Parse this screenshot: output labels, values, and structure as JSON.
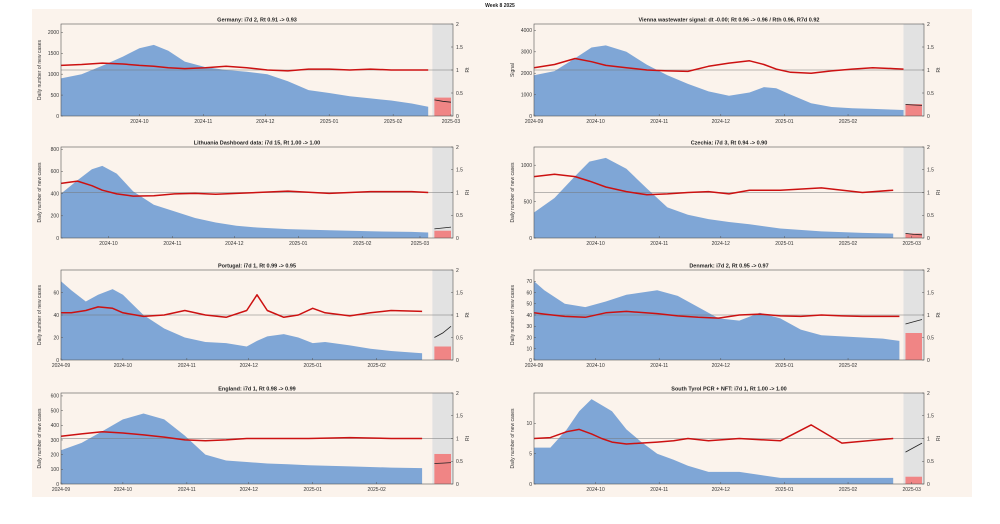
{
  "figure": {
    "suptitle": "Week 8 2025"
  },
  "colors": {
    "area": "#7fa6d6",
    "rt_line": "#cc1111",
    "fc_area": "#f08585",
    "fc_band": "#e2e2e2",
    "bg": "#fbf3ec",
    "ref": "#777777"
  },
  "chart_data": [
    {
      "type": "area",
      "title": "Germany: i7d 2, Rt 0.91 -> 0.93",
      "ylabel": "Daily number of new cases",
      "y2label": "Rt",
      "ylim": [
        0,
        2200
      ],
      "yticks": [
        0,
        500,
        1000,
        1500,
        2000
      ],
      "rlim": [
        0,
        2
      ],
      "rticks": [
        "0",
        "0.5",
        "1",
        "1.5",
        "2"
      ],
      "x": [
        0,
        10,
        20,
        30,
        38,
        45,
        52,
        60,
        70,
        80,
        90,
        100,
        110,
        120,
        130,
        140,
        150,
        160,
        170,
        178
      ],
      "cases": [
        900,
        1000,
        1200,
        1420,
        1620,
        1700,
        1560,
        1300,
        1170,
        1100,
        1060,
        1000,
        830,
        620,
        550,
        470,
        420,
        370,
        300,
        220
      ],
      "rt": [
        1.1,
        1.12,
        1.15,
        1.13,
        1.1,
        1.08,
        1.05,
        1.03,
        1.05,
        1.08,
        1.05,
        1.0,
        0.98,
        1.02,
        1.02,
        1.0,
        1.02,
        1.0,
        1.0,
        1.0
      ],
      "forecast": {
        "rt": [
          0.35,
          0.32,
          0.3
        ],
        "fill": 0.2
      },
      "xticks": [
        {
          "x": 38,
          "label": "2024-10"
        },
        {
          "x": 69,
          "label": "2024-11"
        },
        {
          "x": 99,
          "label": "2024-12"
        },
        {
          "x": 130,
          "label": "2025-01"
        },
        {
          "x": 161,
          "label": "2025-02"
        },
        {
          "x": 189,
          "label": "2025-03"
        }
      ]
    },
    {
      "type": "area",
      "title": "Vienna wastewater signal: dt -0.00; Rt 0.96 -> 0.96 / Rth 0.96, R7d 0.92",
      "ylabel": "Signal",
      "y2label": "Rt",
      "ylim": [
        0,
        4300
      ],
      "yticks": [
        0,
        1000,
        2000,
        3000,
        4000
      ],
      "rlim": [
        0,
        2
      ],
      "rticks": [
        "0",
        "0.5",
        "1",
        "1.5",
        "2"
      ],
      "x": [
        0,
        10,
        20,
        28,
        35,
        45,
        55,
        65,
        75,
        85,
        95,
        105,
        112,
        118,
        125,
        135,
        145,
        155,
        165,
        175,
        180
      ],
      "cases": [
        1900,
        2100,
        2700,
        3200,
        3300,
        3000,
        2400,
        1900,
        1500,
        1150,
        950,
        1100,
        1350,
        1300,
        1000,
        600,
        420,
        360,
        330,
        300,
        280
      ],
      "rt": [
        1.05,
        1.12,
        1.25,
        1.18,
        1.1,
        1.05,
        1.0,
        0.98,
        0.97,
        1.08,
        1.15,
        1.2,
        1.12,
        1.02,
        0.95,
        0.93,
        0.98,
        1.02,
        1.05,
        1.03,
        1.02
      ],
      "forecast": {
        "rt": [
          0.25,
          0.24,
          0.23
        ],
        "fill": 0.13
      },
      "xticks": [
        {
          "x": 0,
          "label": "2024-09"
        },
        {
          "x": 30,
          "label": "2024-10"
        },
        {
          "x": 61,
          "label": "2024-11"
        },
        {
          "x": 91,
          "label": "2024-12"
        },
        {
          "x": 122,
          "label": "2025-01"
        },
        {
          "x": 153,
          "label": "2025-02"
        }
      ]
    },
    {
      "type": "area",
      "title": "Lithuania Dashboard data: i7d 15, Rt 1.00 -> 1.00",
      "ylabel": "Daily number of new cases",
      "y2label": "Rt",
      "ylim": [
        0,
        820
      ],
      "yticks": [
        0,
        200,
        400,
        600,
        800
      ],
      "rlim": [
        0,
        2
      ],
      "rticks": [
        "0",
        "0.5",
        "1",
        "1.5",
        "2"
      ],
      "x": [
        0,
        8,
        15,
        20,
        27,
        35,
        45,
        55,
        65,
        75,
        85,
        95,
        110,
        130,
        150,
        170,
        178
      ],
      "cases": [
        400,
        520,
        620,
        650,
        580,
        420,
        300,
        240,
        180,
        140,
        110,
        95,
        80,
        70,
        60,
        55,
        50
      ],
      "rt": [
        1.2,
        1.25,
        1.15,
        1.05,
        0.97,
        0.92,
        0.93,
        0.97,
        0.98,
        0.96,
        0.98,
        1.0,
        1.03,
        0.98,
        1.02,
        1.02,
        1.0
      ],
      "forecast": {
        "rt": [
          0.2,
          0.22,
          0.24
        ],
        "fill": 0.08
      },
      "xticks": [
        {
          "x": 23,
          "label": "2024-10"
        },
        {
          "x": 54,
          "label": "2024-11"
        },
        {
          "x": 84,
          "label": "2024-12"
        },
        {
          "x": 115,
          "label": "2025-01"
        },
        {
          "x": 146,
          "label": "2025-02"
        },
        {
          "x": 174,
          "label": "2025-03"
        }
      ]
    },
    {
      "type": "area",
      "title": "Czechia: i7d 3, Rt 0.94 -> 0.90",
      "ylabel": "Daily number of new cases",
      "y2label": "Rt",
      "ylim": [
        0,
        1250
      ],
      "yticks": [
        0,
        500,
        1000
      ],
      "rlim": [
        0,
        2
      ],
      "rticks": [
        "0",
        "0.5",
        "1",
        "1.5",
        "2"
      ],
      "x": [
        0,
        10,
        20,
        27,
        35,
        45,
        55,
        65,
        75,
        85,
        95,
        105,
        120,
        140,
        160,
        175
      ],
      "cases": [
        350,
        550,
        850,
        1050,
        1100,
        950,
        680,
        420,
        320,
        260,
        220,
        190,
        130,
        90,
        70,
        60
      ],
      "rt": [
        1.35,
        1.4,
        1.35,
        1.25,
        1.12,
        1.02,
        0.95,
        0.97,
        1.0,
        1.02,
        0.97,
        1.05,
        1.05,
        1.1,
        1.0,
        1.05
      ],
      "forecast": {
        "rt": [
          0.1,
          0.08,
          0.07
        ],
        "fill": 0.05
      },
      "xticks": [
        {
          "x": 30,
          "label": "2024-10"
        },
        {
          "x": 61,
          "label": "2024-11"
        },
        {
          "x": 91,
          "label": "2024-12"
        },
        {
          "x": 122,
          "label": "2025-01"
        },
        {
          "x": 153,
          "label": "2025-02"
        },
        {
          "x": 184,
          "label": "2025-03"
        }
      ]
    },
    {
      "type": "area",
      "title": "Portugal: i7d 1, Rt 0.99 -> 0.95",
      "ylabel": "Daily number of new cases",
      "y2label": "Rt",
      "ylim": [
        0,
        80
      ],
      "yticks": [
        0,
        20,
        40,
        60
      ],
      "rlim": [
        0,
        2
      ],
      "rticks": [
        "0",
        "0.5",
        "1",
        "1.5",
        "2"
      ],
      "x": [
        0,
        5,
        12,
        18,
        25,
        30,
        40,
        50,
        60,
        70,
        80,
        90,
        95,
        100,
        108,
        115,
        122,
        128,
        140,
        150,
        160,
        175
      ],
      "cases": [
        70,
        62,
        52,
        58,
        63,
        58,
        40,
        28,
        20,
        16,
        15,
        12,
        17,
        21,
        23,
        20,
        15,
        16,
        13,
        10,
        8,
        6
      ],
      "rt": [
        1.05,
        1.05,
        1.1,
        1.18,
        1.15,
        1.05,
        0.97,
        1.0,
        1.1,
        1.0,
        0.95,
        1.1,
        1.45,
        1.1,
        0.95,
        1.0,
        1.15,
        1.05,
        0.98,
        1.05,
        1.1,
        1.08
      ],
      "forecast": {
        "rt": [
          0.5,
          0.6,
          0.75
        ],
        "fill": 0.15
      },
      "xticks": [
        {
          "x": 0,
          "label": "2024-09"
        },
        {
          "x": 30,
          "label": "2024-10"
        },
        {
          "x": 61,
          "label": "2024-11"
        },
        {
          "x": 91,
          "label": "2024-12"
        },
        {
          "x": 122,
          "label": "2025-01"
        },
        {
          "x": 153,
          "label": "2025-02"
        }
      ]
    },
    {
      "type": "area",
      "title": "Denmark: i7d 2, Rt 0.95 -> 0.97",
      "ylabel": "Daily number of new cases",
      "y2label": "Rt",
      "ylim": [
        0,
        80
      ],
      "yticks": [
        0,
        10,
        20,
        30,
        40,
        50,
        60,
        70
      ],
      "rlim": [
        0,
        2
      ],
      "rticks": [
        "0",
        "0.5",
        "1",
        "1.5",
        "2"
      ],
      "x": [
        0,
        5,
        15,
        25,
        35,
        45,
        60,
        70,
        80,
        90,
        100,
        110,
        120,
        130,
        140,
        150,
        160,
        170,
        178
      ],
      "cases": [
        70,
        62,
        50,
        47,
        52,
        58,
        62,
        57,
        47,
        37,
        35,
        42,
        37,
        27,
        22,
        21,
        20,
        19,
        17
      ],
      "rt": [
        1.05,
        1.02,
        0.97,
        0.95,
        1.05,
        1.08,
        1.03,
        0.98,
        0.95,
        0.93,
        1.0,
        1.02,
        0.98,
        0.97,
        1.0,
        0.98,
        0.97,
        0.97,
        0.97
      ],
      "forecast": {
        "rt": [
          0.8,
          0.85,
          0.9
        ],
        "fill": 0.3
      },
      "xticks": [
        {
          "x": 0,
          "label": "2024-09"
        },
        {
          "x": 30,
          "label": "2024-10"
        },
        {
          "x": 61,
          "label": "2024-11"
        },
        {
          "x": 91,
          "label": "2024-12"
        },
        {
          "x": 122,
          "label": "2025-01"
        },
        {
          "x": 153,
          "label": "2025-02"
        }
      ]
    },
    {
      "type": "area",
      "title": "England: i7d 1, Rt 0.98 -> 0.99",
      "ylabel": "Daily number of new cases",
      "y2label": "Rt",
      "ylim": [
        0,
        620
      ],
      "yticks": [
        0,
        100,
        200,
        300,
        400,
        500,
        600
      ],
      "rlim": [
        0,
        2
      ],
      "rticks": [
        "0",
        "0.5",
        "1",
        "1.5",
        "2"
      ],
      "x": [
        0,
        10,
        20,
        30,
        40,
        50,
        60,
        70,
        80,
        90,
        100,
        110,
        120,
        140,
        160,
        175
      ],
      "cases": [
        230,
        280,
        360,
        440,
        480,
        440,
        330,
        200,
        160,
        150,
        140,
        135,
        128,
        120,
        112,
        108
      ],
      "rt": [
        1.05,
        1.1,
        1.15,
        1.12,
        1.08,
        1.03,
        0.97,
        0.95,
        0.97,
        1.0,
        1.0,
        1.0,
        1.0,
        1.02,
        1.0,
        1.0
      ],
      "forecast": {
        "rt": [
          0.45,
          0.46,
          0.47
        ],
        "fill": 0.33
      },
      "xticks": [
        {
          "x": 0,
          "label": "2024-09"
        },
        {
          "x": 30,
          "label": "2024-10"
        },
        {
          "x": 61,
          "label": "2024-11"
        },
        {
          "x": 91,
          "label": "2024-12"
        },
        {
          "x": 122,
          "label": "2025-01"
        },
        {
          "x": 153,
          "label": "2025-02"
        }
      ]
    },
    {
      "type": "area",
      "title": "South Tyrol PCR + NFT: i7d 1, Rt 1.00 -> 1.00",
      "ylabel": "Daily number of new cases",
      "y2label": "Rt",
      "ylim": [
        0,
        15
      ],
      "yticks": [
        0,
        5,
        10
      ],
      "rlim": [
        0,
        2
      ],
      "rticks": [
        "0",
        "0.5",
        "1",
        "1.5",
        "2"
      ],
      "x": [
        0,
        8,
        16,
        22,
        28,
        33,
        38,
        45,
        52,
        60,
        68,
        75,
        85,
        100,
        120,
        135,
        150,
        175
      ],
      "cases": [
        6,
        6,
        9,
        12,
        14,
        13,
        12,
        9,
        7,
        5,
        4,
        3,
        2,
        2,
        1,
        1,
        1,
        1
      ],
      "rt": [
        1.0,
        1.02,
        1.15,
        1.2,
        1.1,
        1.0,
        0.92,
        0.88,
        0.9,
        0.92,
        0.95,
        1.0,
        0.95,
        1.0,
        0.95,
        1.3,
        0.9,
        1.0
      ],
      "forecast": {
        "rt": [
          0.7,
          0.8,
          0.9
        ],
        "fill": 0.08
      },
      "xticks": [
        {
          "x": 30,
          "label": "2024-10"
        },
        {
          "x": 61,
          "label": "2024-11"
        },
        {
          "x": 91,
          "label": "2024-12"
        },
        {
          "x": 122,
          "label": "2025-01"
        },
        {
          "x": 153,
          "label": "2025-02"
        },
        {
          "x": 184,
          "label": "2025-03"
        }
      ]
    }
  ]
}
